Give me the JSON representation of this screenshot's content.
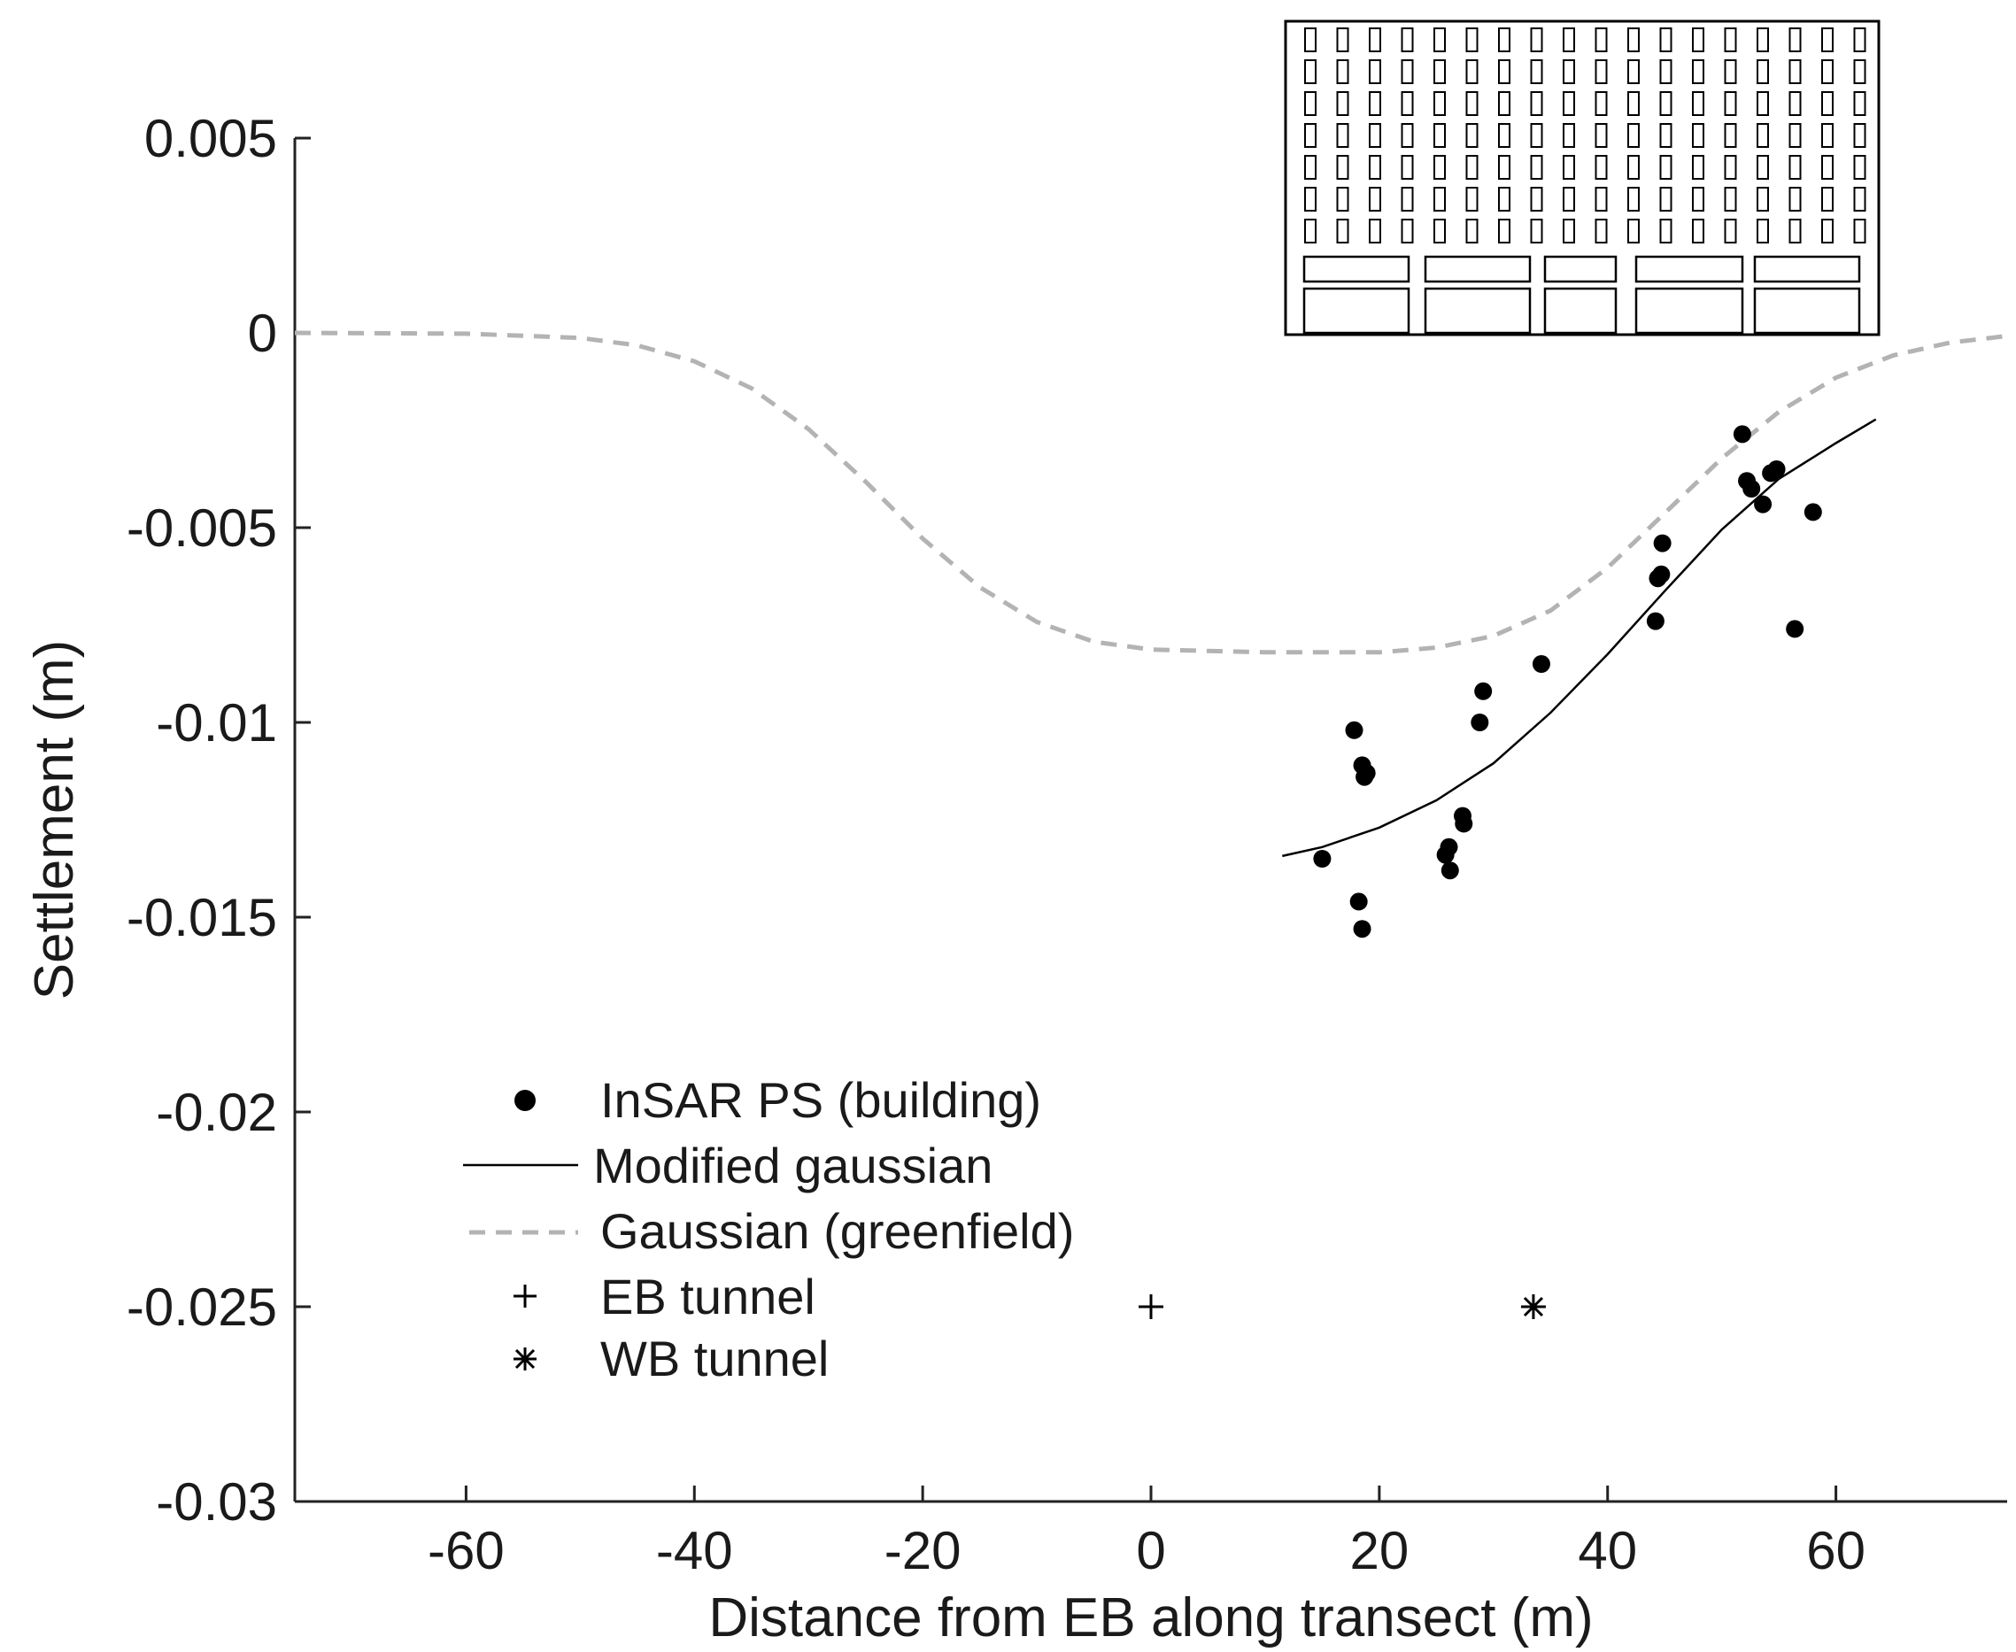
{
  "chart_data": {
    "type": "scatter",
    "title": "",
    "xlabel": "Distance from EB along transect (m)",
    "ylabel": "Settlement (m)",
    "xlim": [
      -75,
      75
    ],
    "ylim": [
      -0.03,
      0.005
    ],
    "x_ticks": [
      -60,
      -40,
      -20,
      0,
      20,
      40,
      60
    ],
    "x_tick_labels": [
      "-60",
      "-40",
      "-20",
      "0",
      "20",
      "40",
      "60"
    ],
    "y_ticks": [
      0.005,
      0,
      -0.005,
      -0.01,
      -0.015,
      -0.02,
      -0.025,
      -0.03
    ],
    "y_tick_labels": [
      "0.005",
      "0",
      "-0.005",
      "-0.01",
      "-0.015",
      "-0.02",
      "-0.025",
      "-0.03"
    ],
    "grid": false,
    "legend_position": "lower-left",
    "series": [
      {
        "name": "InSAR PS (building)",
        "kind": "scatter",
        "marker": "filled-circle",
        "color": "#000000",
        "points": [
          [
            15.0,
            -0.0135
          ],
          [
            17.8,
            -0.0102
          ],
          [
            18.2,
            -0.0146
          ],
          [
            18.5,
            -0.0153
          ],
          [
            18.5,
            -0.0111
          ],
          [
            18.7,
            -0.0114
          ],
          [
            18.9,
            -0.0113
          ],
          [
            25.8,
            -0.0134
          ],
          [
            26.1,
            -0.0132
          ],
          [
            26.2,
            -0.0138
          ],
          [
            27.3,
            -0.0124
          ],
          [
            27.4,
            -0.0126
          ],
          [
            28.8,
            -0.01
          ],
          [
            29.1,
            -0.0092
          ],
          [
            34.2,
            -0.0085
          ],
          [
            44.2,
            -0.0074
          ],
          [
            44.4,
            -0.0063
          ],
          [
            44.7,
            -0.0062
          ],
          [
            44.8,
            -0.0054
          ],
          [
            51.8,
            -0.0026
          ],
          [
            52.2,
            -0.0038
          ],
          [
            52.6,
            -0.004
          ],
          [
            53.6,
            -0.0044
          ],
          [
            54.3,
            -0.0036
          ],
          [
            54.8,
            -0.0035
          ],
          [
            56.4,
            -0.0076
          ],
          [
            58.0,
            -0.0046
          ]
        ]
      },
      {
        "name": "Modified gaussian",
        "kind": "line",
        "style": "solid",
        "color": "#000000",
        "points": [
          [
            11.5,
            -0.01343
          ],
          [
            15,
            -0.0132
          ],
          [
            20,
            -0.0127
          ],
          [
            25,
            -0.012
          ],
          [
            30,
            -0.01105
          ],
          [
            35,
            -0.00975
          ],
          [
            40,
            -0.00825
          ],
          [
            45,
            -0.00663
          ],
          [
            50,
            -0.00505
          ],
          [
            55,
            -0.00375
          ],
          [
            60,
            -0.00283
          ],
          [
            63.5,
            -0.00222
          ]
        ]
      },
      {
        "name": "Gaussian (greenfield)",
        "kind": "line",
        "style": "dashed",
        "color": "#b3b3b3",
        "points": [
          [
            -75,
            0.0
          ],
          [
            -60,
            -2e-05
          ],
          [
            -50,
            -0.00013
          ],
          [
            -45,
            -0.00032
          ],
          [
            -40,
            -0.00073
          ],
          [
            -35,
            -0.00142
          ],
          [
            -30,
            -0.00247
          ],
          [
            -25,
            -0.00382
          ],
          [
            -20,
            -0.00528
          ],
          [
            -15,
            -0.00653
          ],
          [
            -10,
            -0.00742
          ],
          [
            -5,
            -0.00793
          ],
          [
            0,
            -0.00813
          ],
          [
            10,
            -0.0082
          ],
          [
            20,
            -0.0082
          ],
          [
            25,
            -0.00808
          ],
          [
            30,
            -0.00778
          ],
          [
            35,
            -0.00713
          ],
          [
            40,
            -0.00603
          ],
          [
            45,
            -0.00463
          ],
          [
            50,
            -0.00322
          ],
          [
            55,
            -0.00203
          ],
          [
            60,
            -0.00115
          ],
          [
            65,
            -0.00058
          ],
          [
            70,
            -0.00025
          ],
          [
            75,
            -8e-05
          ]
        ]
      },
      {
        "name": "EB tunnel",
        "kind": "scatter",
        "marker": "plus",
        "color": "#000000",
        "points": [
          [
            0,
            -0.025
          ]
        ]
      },
      {
        "name": "WB tunnel",
        "kind": "scatter",
        "marker": "asterisk",
        "color": "#000000",
        "points": [
          [
            33.5,
            -0.025
          ]
        ]
      }
    ],
    "annotations": [
      {
        "type": "building-sketch",
        "description_icon": "building-icon",
        "floors_with_windows": 7,
        "windows_per_floor": 18,
        "ground_bays": 5
      }
    ]
  }
}
